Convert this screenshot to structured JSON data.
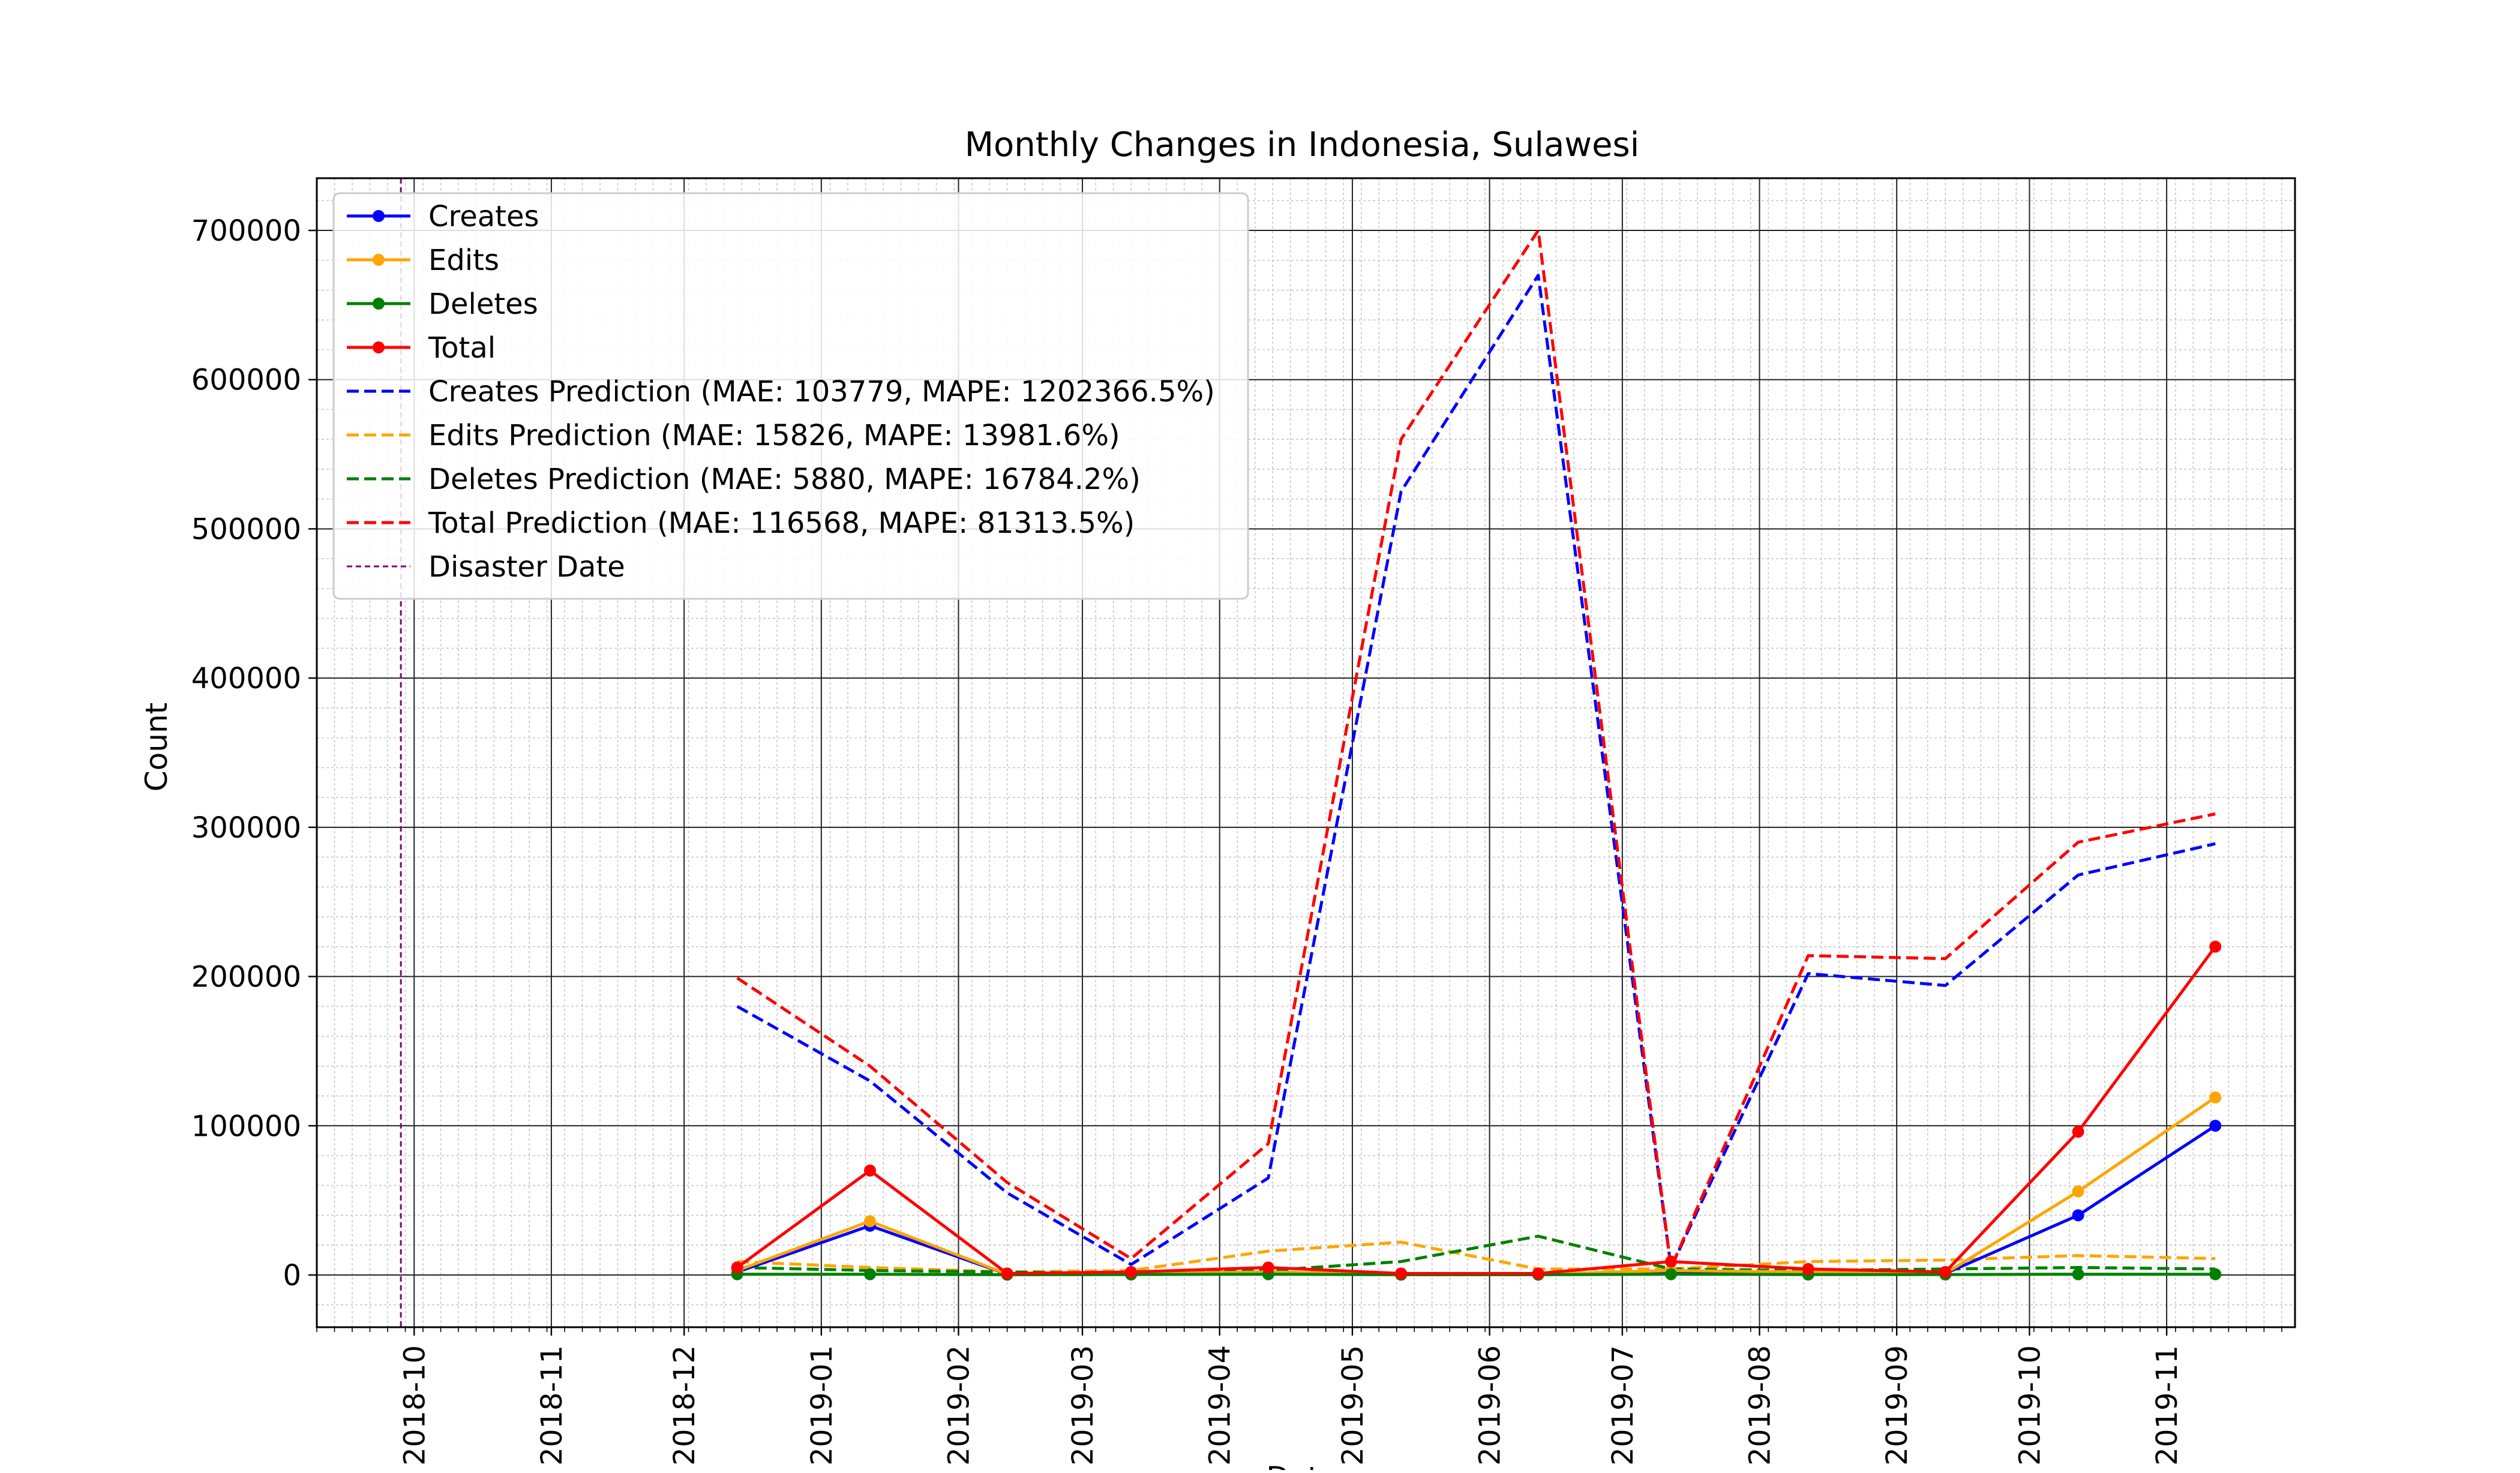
{
  "chart_data": {
    "type": "line",
    "title": "Monthly Changes in Indonesia, Sulawesi",
    "xlabel": "Date",
    "ylabel": "Count",
    "ylim": [
      -35000,
      735000
    ],
    "xlim": [
      "2018-09-09",
      "2019-11-30"
    ],
    "grid": "major and minor",
    "legend_position": "top-left",
    "x": [
      "2018-12-13",
      "2019-01-12",
      "2019-02-12",
      "2019-03-12",
      "2019-04-12",
      "2019-05-12",
      "2019-06-12",
      "2019-07-12",
      "2019-08-12",
      "2019-09-12",
      "2019-10-12",
      "2019-11-12"
    ],
    "x_ticks": [
      "2018-10",
      "2018-11",
      "2018-12",
      "2019-01",
      "2019-02",
      "2019-03",
      "2019-04",
      "2019-05",
      "2019-06",
      "2019-07",
      "2019-08",
      "2019-09",
      "2019-10",
      "2019-11"
    ],
    "y_ticks": [
      0,
      100000,
      200000,
      300000,
      400000,
      500000,
      600000,
      700000
    ],
    "series": [
      {
        "name": "Creates",
        "style": "solid-markers",
        "color": "#0000ff",
        "values": [
          2000,
          33000,
          500,
          1000,
          2000,
          500,
          500,
          2000,
          1500,
          1000,
          40000,
          100000
        ]
      },
      {
        "name": "Edits",
        "style": "solid-markers",
        "color": "#ffa500",
        "values": [
          3000,
          36000,
          500,
          1000,
          2000,
          500,
          500,
          3000,
          2000,
          1000,
          56000,
          119000
        ]
      },
      {
        "name": "Deletes",
        "style": "solid-markers",
        "color": "#008000",
        "values": [
          500,
          500,
          200,
          300,
          500,
          200,
          200,
          500,
          300,
          300,
          500,
          500
        ]
      },
      {
        "name": "Total",
        "style": "solid-markers",
        "color": "#ff0000",
        "values": [
          5000,
          70000,
          1000,
          2000,
          5000,
          1000,
          1000,
          9000,
          4000,
          2000,
          96000,
          220000
        ]
      },
      {
        "name": "Creates Prediction (MAE: 103779, MAPE: 1202366.5%)",
        "style": "dashed",
        "color": "#0000ff",
        "values": [
          180000,
          130000,
          55000,
          7000,
          65000,
          525000,
          670000,
          5000,
          202000,
          194000,
          268000,
          289000
        ]
      },
      {
        "name": "Edits Prediction (MAE: 15826, MAPE: 13981.6%)",
        "style": "dashed",
        "color": "#ffa500",
        "values": [
          9000,
          5000,
          2000,
          3000,
          16000,
          22000,
          4000,
          4000,
          9000,
          10000,
          13000,
          11000
        ]
      },
      {
        "name": "Deletes Prediction (MAE: 5880, MAPE: 16784.2%)",
        "style": "dashed",
        "color": "#008000",
        "values": [
          5000,
          3000,
          2000,
          1000,
          3000,
          9000,
          26000,
          4000,
          3000,
          4000,
          5000,
          4000
        ]
      },
      {
        "name": "Total Prediction (MAE: 116568, MAPE: 81313.5%)",
        "style": "dashed",
        "color": "#ff0000",
        "values": [
          199000,
          140000,
          62000,
          11000,
          88000,
          560000,
          700000,
          5000,
          214000,
          212000,
          290000,
          309000
        ]
      }
    ],
    "vlines": [
      {
        "name": "Disaster Date",
        "x": "2018-09-28",
        "color": "#800080",
        "style": "dashed"
      }
    ]
  }
}
